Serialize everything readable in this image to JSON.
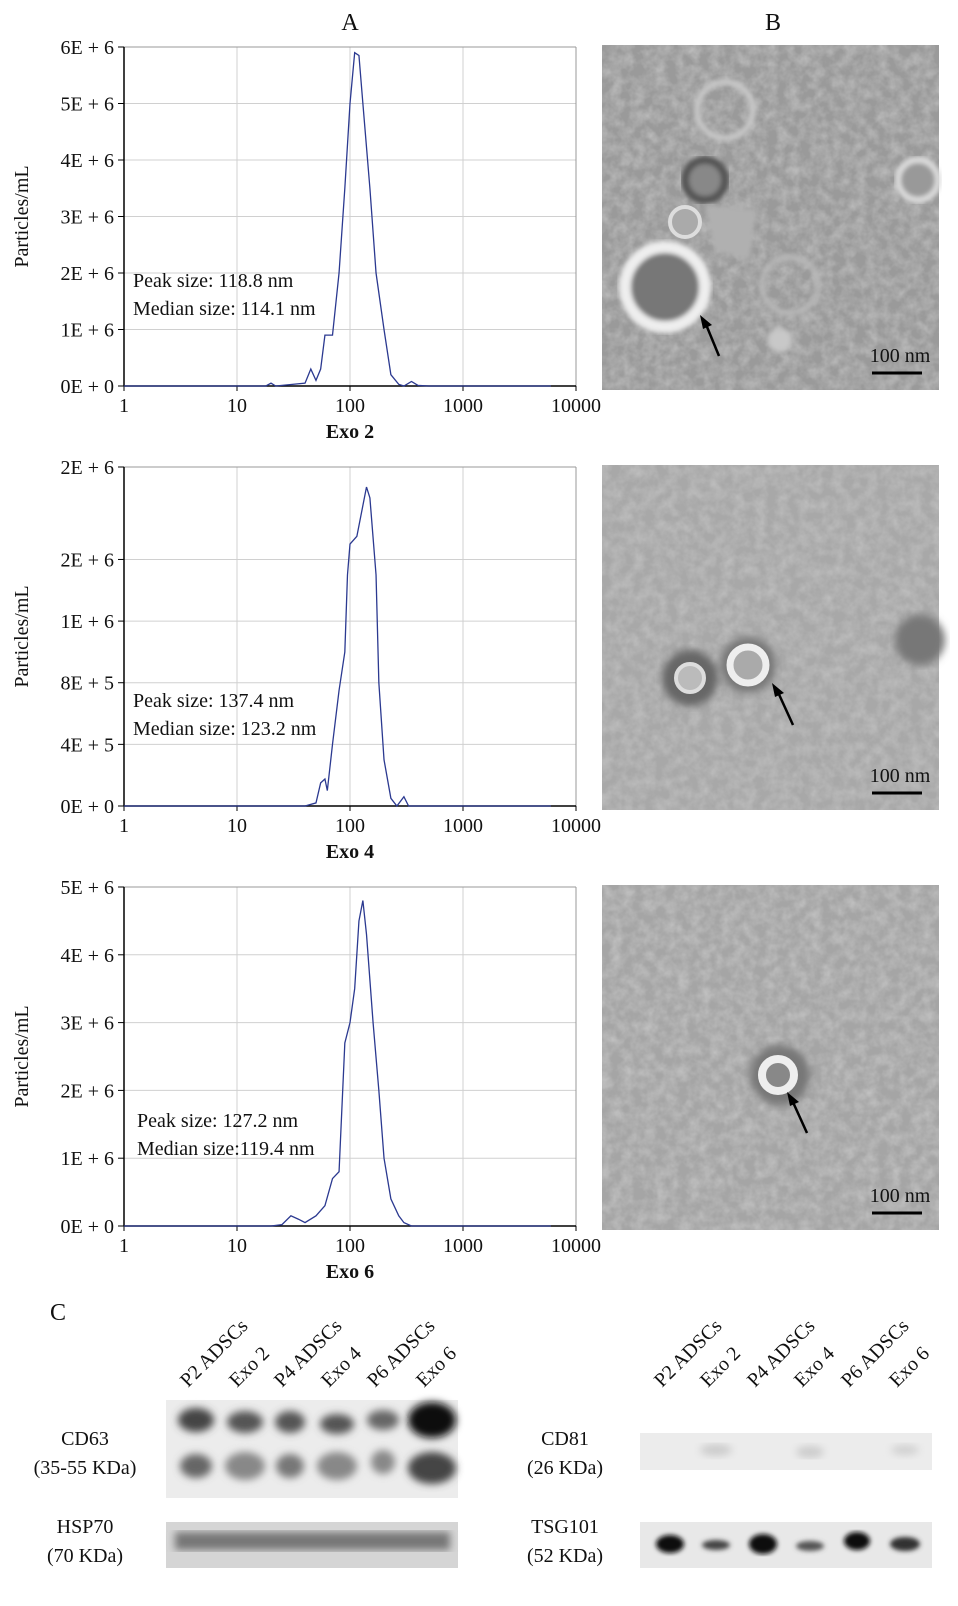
{
  "chart_data": [
    {
      "type": "line",
      "x_label": "Exo 2",
      "y_label": "Particles/mL",
      "annotations": [
        "Peak size: 118.8 nm",
        "Median size: 114.1 nm"
      ],
      "xlog": true,
      "grid": true,
      "xlim": [
        1,
        10000
      ],
      "xticks": [
        1,
        10,
        100,
        1000,
        10000
      ],
      "ylim": [
        0,
        6000000
      ],
      "yticks": [
        {
          "value": 0,
          "label": "0E + 0"
        },
        {
          "value": 1000000,
          "label": "1E + 6"
        },
        {
          "value": 2000000,
          "label": "2E + 6"
        },
        {
          "value": 3000000,
          "label": "3E + 6"
        },
        {
          "value": 4000000,
          "label": "4E + 6"
        },
        {
          "value": 5000000,
          "label": "5E + 6"
        },
        {
          "value": 6000000,
          "label": "6E + 6"
        }
      ],
      "x": [
        1,
        5,
        18,
        20,
        22,
        40,
        45,
        50,
        55,
        60,
        70,
        80,
        90,
        100,
        110,
        120,
        130,
        150,
        170,
        200,
        230,
        270,
        300,
        350,
        400,
        500,
        6000
      ],
      "series": [
        {
          "color": "#2b3990",
          "values": [
            0,
            0,
            0,
            50000,
            0,
            50000,
            300000,
            100000,
            300000,
            900000,
            900000,
            2000000,
            3500000,
            5000000,
            5900000,
            5850000,
            5000000,
            3500000,
            2000000,
            1000000,
            200000,
            30000,
            0,
            80000,
            10000,
            0,
            0
          ]
        }
      ]
    },
    {
      "type": "line",
      "x_label": "Exo 4",
      "y_label": "Particles/mL",
      "annotations": [
        "Peak size: 137.4 nm",
        "Median size: 123.2 nm"
      ],
      "xlog": true,
      "grid": true,
      "xlim": [
        1,
        10000
      ],
      "xticks": [
        1,
        10,
        100,
        1000,
        10000
      ],
      "ylim": [
        0,
        2200000
      ],
      "yticks": [
        {
          "value": 0,
          "label": "0E + 0"
        },
        {
          "value": 400000,
          "label": "4E + 5"
        },
        {
          "value": 800000,
          "label": "8E + 5"
        },
        {
          "value": 1200000,
          "label": "1E + 6"
        },
        {
          "value": 1600000,
          "label": "2E + 6"
        },
        {
          "value": 2200000,
          "label": "2E + 6"
        }
      ],
      "x": [
        1,
        40,
        50,
        55,
        60,
        63,
        70,
        80,
        90,
        95,
        100,
        115,
        130,
        140,
        150,
        170,
        180,
        200,
        230,
        260,
        300,
        330,
        6000
      ],
      "series": [
        {
          "color": "#2b3990",
          "values": [
            0,
            0,
            20000,
            150000,
            175000,
            100000,
            400000,
            750000,
            1000000,
            1500000,
            1700000,
            1750000,
            1950000,
            2070000,
            2000000,
            1500000,
            800000,
            300000,
            50000,
            0,
            60000,
            0,
            0
          ]
        }
      ]
    },
    {
      "type": "line",
      "x_label": "Exo 6",
      "y_label": "Particles/mL",
      "annotations": [
        "Peak size: 127.2 nm",
        "Median size:119.4 nm"
      ],
      "xlog": true,
      "grid": true,
      "xlim": [
        1,
        10000
      ],
      "xticks": [
        1,
        10,
        100,
        1000,
        10000
      ],
      "ylim": [
        0,
        5000000
      ],
      "yticks": [
        {
          "value": 0,
          "label": "0E + 0"
        },
        {
          "value": 1000000,
          "label": "1E + 6"
        },
        {
          "value": 2000000,
          "label": "2E + 6"
        },
        {
          "value": 3000000,
          "label": "3E + 6"
        },
        {
          "value": 4000000,
          "label": "4E + 6"
        },
        {
          "value": 5000000,
          "label": "5E + 6"
        }
      ],
      "x": [
        1,
        20,
        25,
        30,
        35,
        40,
        50,
        60,
        70,
        80,
        90,
        100,
        110,
        120,
        130,
        140,
        160,
        180,
        200,
        230,
        270,
        300,
        350,
        6000
      ],
      "series": [
        {
          "color": "#2b3990",
          "values": [
            0,
            0,
            20000,
            150000,
            100000,
            50000,
            150000,
            300000,
            700000,
            800000,
            2700000,
            3000000,
            3500000,
            4500000,
            4800000,
            4300000,
            3000000,
            2000000,
            1000000,
            400000,
            150000,
            50000,
            0,
            0
          ]
        }
      ]
    }
  ],
  "panel_labels": [
    "A",
    "B",
    "C"
  ],
  "scale_bars": [
    "100 nm",
    "100 nm",
    "100 nm"
  ],
  "western_blot": {
    "groups": [
      {
        "lanes": [
          "P2 ADSCs",
          "Exo 2",
          "P4 ADSCs",
          "Exo 4",
          "P6 ADSCs",
          "Exo 6"
        ],
        "blots": [
          {
            "protein": "CD63",
            "size": "(35-55 KDa)"
          },
          {
            "protein": "HSP70",
            "size": "(70 KDa)"
          }
        ]
      },
      {
        "lanes": [
          "P2 ADSCs",
          "Exo 2",
          "P4 ADSCs",
          "Exo 4",
          "P6 ADSCs",
          "Exo 6"
        ],
        "blots": [
          {
            "protein": "CD81",
            "size": "(26 KDa)"
          },
          {
            "protein": "TSG101",
            "size": "(52 KDa)"
          }
        ]
      }
    ]
  }
}
